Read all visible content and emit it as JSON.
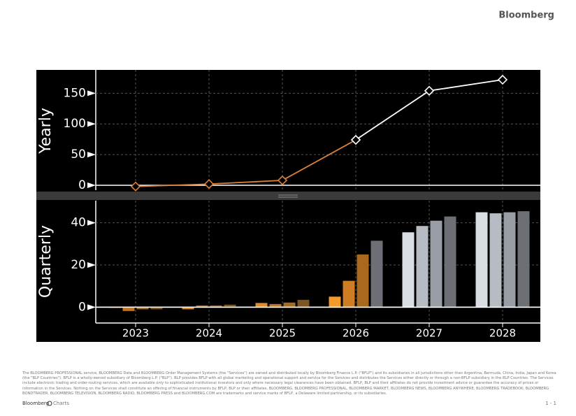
{
  "header": {
    "brand": "Bloomberg"
  },
  "chart_data": [
    {
      "type": "line",
      "ylabel": "Yearly",
      "ylim": [
        -8,
        188
      ],
      "yticks": [
        0,
        50,
        100,
        150
      ],
      "grid": true,
      "series": [
        {
          "color": "#d9803a",
          "values": [
            -2,
            2,
            8,
            74,
            null,
            null
          ]
        },
        {
          "color": "#ffffff",
          "values": [
            null,
            null,
            null,
            74,
            154,
            172
          ]
        }
      ]
    },
    {
      "type": "bar",
      "ylabel": "Quarterly",
      "categories": [
        "2023",
        "2024",
        "2025",
        "2026",
        "2027",
        "2028"
      ],
      "ylim": [
        -7.5,
        50.5
      ],
      "yticks": [
        0,
        20,
        40
      ],
      "grid": true,
      "series": [
        {
          "colors": [
            "#d9862a",
            "#d9862a",
            "#e08a28",
            "#f29a2c",
            "#d9dde4",
            "#d9dde4"
          ],
          "values": [
            -0.3,
            -1,
            2,
            5,
            35.5,
            45
          ]
        },
        {
          "colors": [
            "#c27526",
            "#c27526",
            "#c27526",
            "#d07c24",
            "#b7bbc3",
            "#b7bbc3"
          ],
          "values": [
            -1.8,
            0.8,
            1.5,
            12.5,
            38.5,
            44.5
          ]
        },
        {
          "colors": [
            "#a56a25",
            "#a56a25",
            "#a56a25",
            "#a8691f",
            "#999da5",
            "#999da5"
          ],
          "values": [
            -1,
            0.8,
            2.2,
            25,
            41,
            45
          ]
        },
        {
          "colors": [
            "#7d5520",
            "#7d5520",
            "#7d5520",
            "#6c6f75",
            "#6c6f75",
            "#6c6f75"
          ],
          "values": [
            -1,
            1.2,
            3.5,
            31.5,
            43,
            45.5
          ]
        }
      ]
    }
  ],
  "footer": {
    "disclaimer": "The BLOOMBERG PROFESSIONAL service, BLOOMBERG Data and BLOOMBERG Order Management Systems (the \"Services\") are owned and distributed locally by Bloomberg Finance L.P. (\"BFLP\") and its subsidiaries in all jurisdictions other than Argentina, Bermuda, China, India, Japan and Korea (the \"BLP Countries\"). BFLP is a wholly-owned subsidiary of Bloomberg L.P. (\"BLP\"). BLP provides BFLP with all global marketing and operational support and service for the Services and distributes the Services either directly or through a non-BFLP subsidiary in the BLP Countries. The Services include electronic trading and order-routing services, which are available only to sophisticated institutional investors and only where necessary legal clearances have been obtained. BFLP, BLP and their affiliates do not provide investment advice or guarantee the accuracy of prices or information in the Services. Nothing on the Services shall constitute an offering of financial instruments by BFLP, BLP or their affiliates. BLOOMBERG, BLOOMBERG PROFESSIONAL, BLOOMBERG MARKET, BLOOMBERG NEWS, BLOOMBERG ANYWHERE, BLOOMBERG TRADEBOOK, BLOOMBERG BONDTRADER, BLOOMBERG TELEVISION, BLOOMBERG RADIO, BLOOMBERG PRESS and BLOOMBERG.COM are trademarks and service marks of BFLP, a Delaware limited partnership, or its subsidiaries.",
    "brand": "Bloomberg",
    "product": "Charts",
    "page": "1 - 1"
  }
}
